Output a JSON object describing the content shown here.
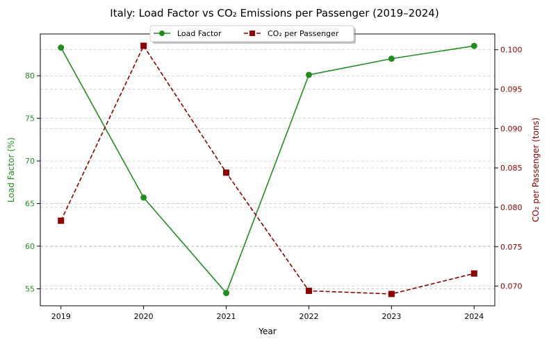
{
  "chart_data": {
    "type": "line",
    "title": "Italy: Load Factor vs CO₂ Emissions per Passenger (2019–2024)",
    "xlabel": "Year",
    "ylabel_left": "Load Factor (%)",
    "ylabel_right": "CO₂ per Passenger (tons)",
    "x": [
      2019,
      2020,
      2021,
      2022,
      2023,
      2024
    ],
    "x_ticks": [
      "2019",
      "2020",
      "2021",
      "2022",
      "2023",
      "2024"
    ],
    "x_range": [
      2018.75,
      2024.25
    ],
    "y_left_ticks": [
      "55",
      "60",
      "65",
      "70",
      "75",
      "80"
    ],
    "y_left_range": [
      53.0,
      84.9
    ],
    "y_right_ticks": [
      "0.070",
      "0.075",
      "0.080",
      "0.085",
      "0.090",
      "0.095",
      "0.100"
    ],
    "y_right_range": [
      0.0675,
      0.102
    ],
    "grid": true,
    "legend_position": "top-center",
    "series": [
      {
        "name": "Load Factor",
        "axis": "left",
        "values": [
          83.3,
          65.7,
          54.5,
          80.1,
          82.0,
          83.5
        ],
        "color": "#228b22",
        "marker": "circle",
        "line_style": "solid"
      },
      {
        "name": "CO₂ per Passenger",
        "axis": "right",
        "values": [
          0.0783,
          0.1005,
          0.0844,
          0.0694,
          0.069,
          0.0716
        ],
        "color": "#8b0000",
        "marker": "square",
        "line_style": "dashed"
      }
    ]
  }
}
